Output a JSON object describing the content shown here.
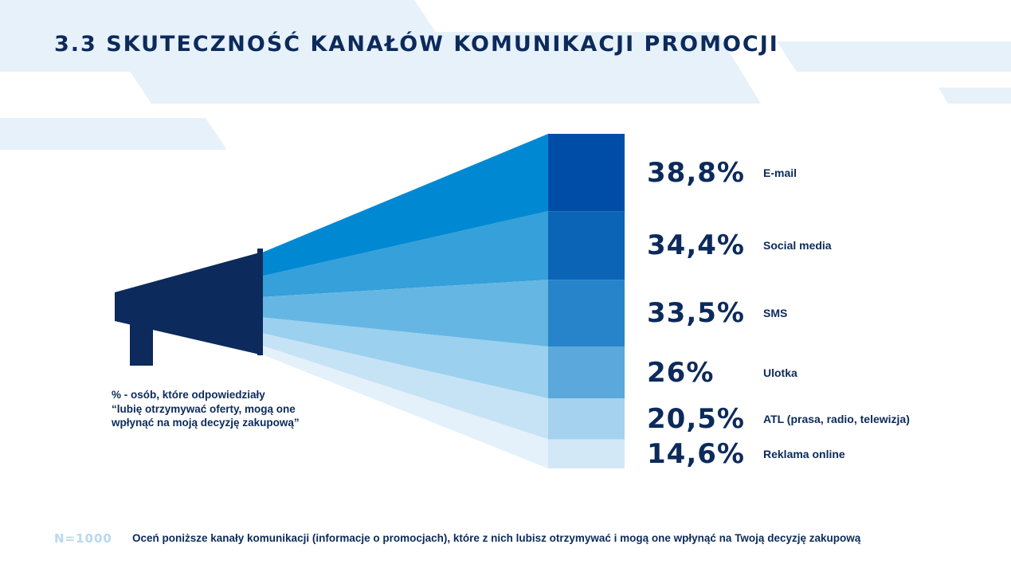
{
  "page": {
    "title": "3.3  SKUTECZNOŚĆ KANAŁÓW KOMUNIKACJI PROMOCJI",
    "note_lines": [
      "% - osób, które odpowiedziały",
      "“lubię otrzymywać oferty, mogą one",
      "wpłynąć na moją decyzję zakupową”"
    ],
    "sample": "N=1000",
    "question": "Oceń poniższe kanały komunikacji (informacje o promocjach), które z nich lubisz otrzymywać i mogą one wpłynąć na Twoją decyzję zakupową"
  },
  "icons": {
    "megaphone": "megaphone-icon"
  },
  "colors": {
    "title": "#0c2a5b",
    "megaphone": "#0c2a5b",
    "sample": "#b9d8f0",
    "background_shapes": "#e7f1fa",
    "cone": [
      "#0089d2",
      "#35a0da",
      "#66b6e3",
      "#9bd0ee",
      "#c6e3f5",
      "#e4f1fa"
    ],
    "blocks": [
      "#004da8",
      "#0b64b6",
      "#2783ca",
      "#5aa8dc",
      "#a4d2ef",
      "#d2e8f7"
    ]
  },
  "chart_data": {
    "type": "bar",
    "categories": [
      "E-mail",
      "Social media",
      "SMS",
      "Ulotka",
      "ATL (prasa, radio, telewizja)",
      "Reklama online"
    ],
    "values": [
      38.8,
      34.4,
      33.5,
      26,
      20.5,
      14.6
    ],
    "value_labels": [
      "38,8%",
      "34,4%",
      "33,5%",
      "26%",
      "20,5%",
      "14,6%"
    ],
    "unit": "%",
    "orientation": "stacked-funnel",
    "legend": "none",
    "grid": false
  }
}
